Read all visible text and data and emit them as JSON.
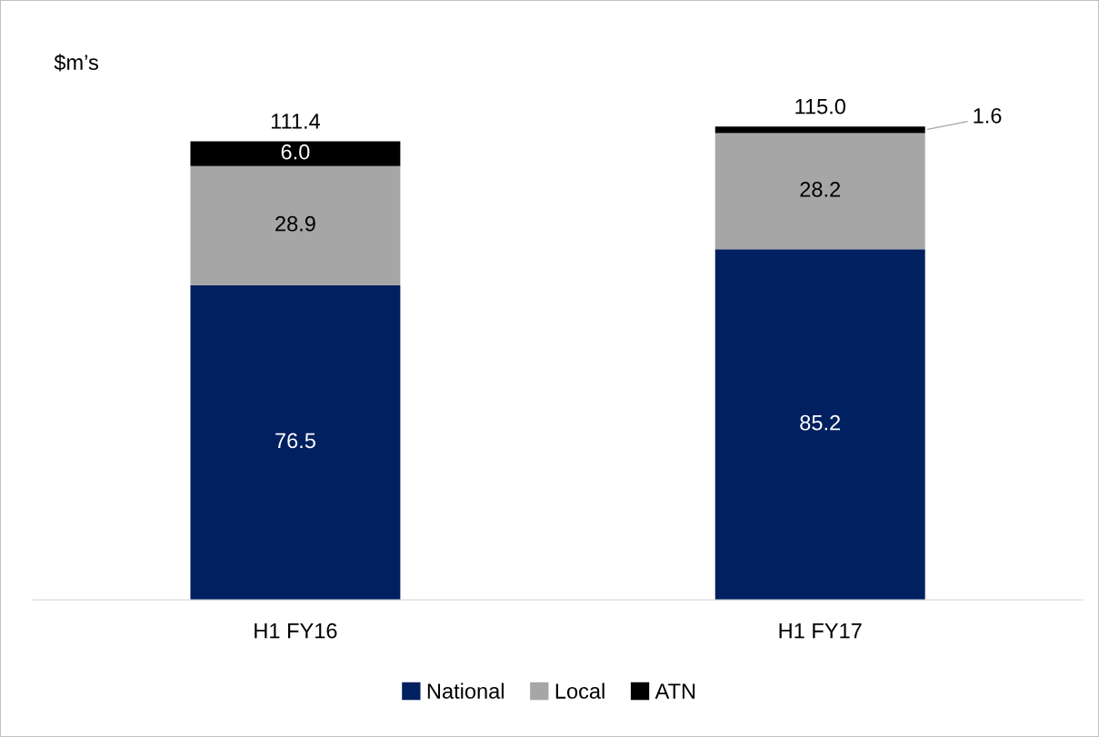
{
  "chart_data": {
    "type": "bar",
    "stacked": true,
    "ylabel": "$m’s",
    "categories": [
      "H1 FY16",
      "H1 FY17"
    ],
    "series": [
      {
        "name": "National",
        "color": "#002060",
        "values": [
          76.5,
          85.2
        ],
        "value_labels": [
          "76.5",
          "85.2"
        ]
      },
      {
        "name": "Local",
        "color": "#a6a6a6",
        "values": [
          28.9,
          28.2
        ],
        "value_labels": [
          "28.9",
          "28.2"
        ]
      },
      {
        "name": "ATN",
        "color": "#000000",
        "values": [
          6.0,
          1.6
        ],
        "value_labels": [
          "6.0",
          "1.6"
        ]
      }
    ],
    "totals": [
      "111.4",
      "115.0"
    ],
    "legend": "bottom",
    "grid": false
  }
}
